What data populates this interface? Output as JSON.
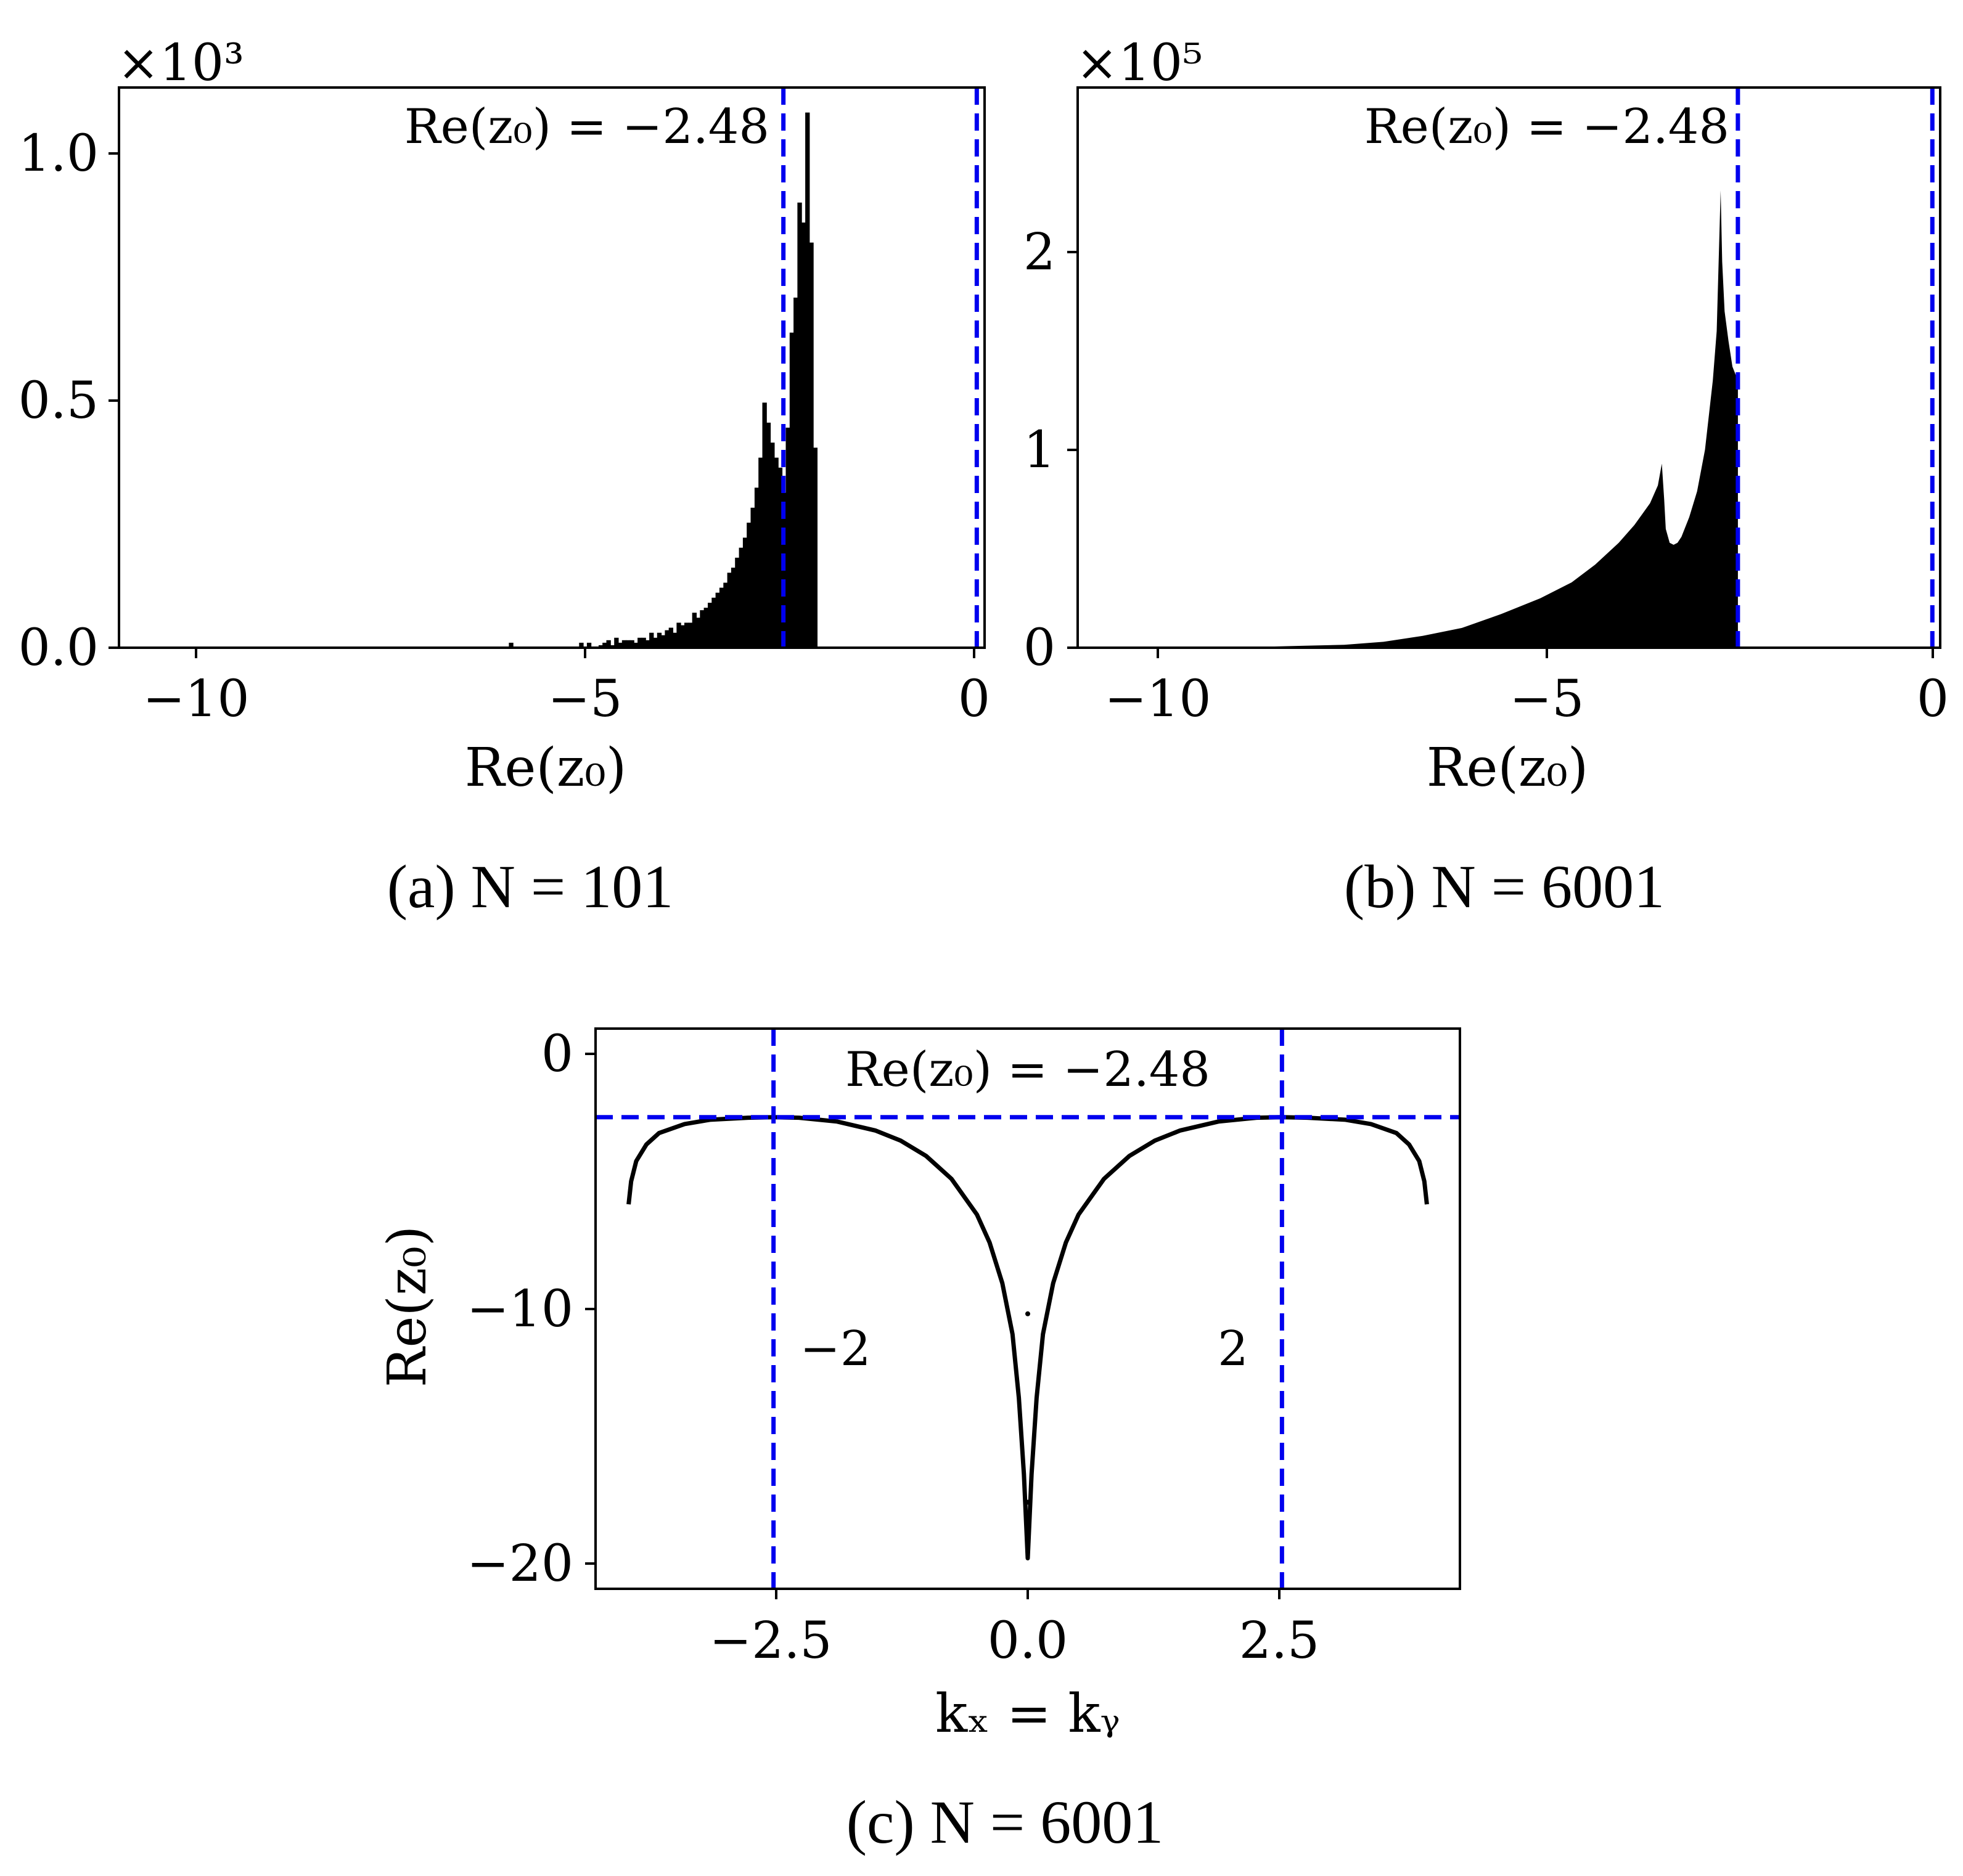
{
  "colors": {
    "bars": "#000000",
    "guide": "#0000ee",
    "frame": "#000000"
  },
  "chart_data": [
    {
      "type": "bar",
      "caption": "(a) N = 101",
      "xlabel": "Re(z₀)",
      "ylabel": "",
      "xlim": [
        -11,
        0.1
      ],
      "ylim": [
        0,
        1.12
      ],
      "y_multiplier": "×10³",
      "xticks": [
        "−10",
        "−5",
        "0"
      ],
      "yticks": [
        "0.0",
        "0.5",
        "1.0"
      ],
      "annotation": "Re(z₀) = −2.48",
      "vlines": [
        -2.48,
        0
      ],
      "bin_width": 0.0576,
      "bins_x": [
        -6.0,
        -5.1,
        -5.0,
        -4.9,
        -4.85,
        -4.8,
        -4.75,
        -4.7,
        -4.65,
        -4.6,
        -4.55,
        -4.5,
        -4.45,
        -4.4,
        -4.35,
        -4.3,
        -4.25,
        -4.2,
        -4.15,
        -4.1,
        -4.05,
        -4.0,
        -3.95,
        -3.9,
        -3.85,
        -3.8,
        -3.75,
        -3.7,
        -3.65,
        -3.6,
        -3.55,
        -3.5,
        -3.45,
        -3.4,
        -3.35,
        -3.3,
        -3.25,
        -3.2,
        -3.15,
        -3.1,
        -3.05,
        -3.0,
        -2.95,
        -2.9,
        -2.85,
        -2.8,
        -2.75,
        -2.7,
        -2.65,
        -2.6,
        -2.55,
        -2.5,
        -2.45,
        -2.4,
        -2.35,
        -2.3,
        -2.25,
        -2.2,
        -2.15,
        -2.1
      ],
      "values": [
        0.01,
        0.01,
        0.01,
        0.0,
        0.005,
        0.01,
        0.015,
        0.005,
        0.02,
        0.01,
        0.015,
        0.015,
        0.015,
        0.01,
        0.02,
        0.02,
        0.015,
        0.03,
        0.02,
        0.03,
        0.025,
        0.035,
        0.04,
        0.03,
        0.05,
        0.045,
        0.05,
        0.05,
        0.07,
        0.06,
        0.075,
        0.08,
        0.09,
        0.1,
        0.11,
        0.12,
        0.13,
        0.15,
        0.16,
        0.18,
        0.2,
        0.22,
        0.25,
        0.28,
        0.32,
        0.38,
        0.49,
        0.45,
        0.41,
        0.38,
        0.36,
        0.31,
        0.44,
        0.63,
        0.7,
        0.89,
        0.85,
        1.07,
        0.81,
        0.4
      ]
    },
    {
      "type": "area",
      "caption": "(b) N = 6001",
      "xlabel": "Re(z₀)",
      "ylabel": "",
      "xlim": [
        -10.9,
        0.1
      ],
      "ylim": [
        0,
        2.83
      ],
      "y_multiplier": "×10⁵",
      "xticks": [
        "−10",
        "−5",
        "0"
      ],
      "yticks": [
        "0",
        "1",
        "2"
      ],
      "annotation": "Re(z₀) = −2.48",
      "vlines": [
        -2.48,
        0
      ],
      "x": [
        -9.0,
        -8.0,
        -7.5,
        -7.0,
        -6.5,
        -6.0,
        -5.5,
        -5.0,
        -4.6,
        -4.3,
        -4.0,
        -3.8,
        -3.6,
        -3.5,
        -3.45,
        -3.42,
        -3.4,
        -3.35,
        -3.3,
        -3.25,
        -3.2,
        -3.1,
        -3.0,
        -2.9,
        -2.8,
        -2.75,
        -2.7,
        -2.68,
        -2.65,
        -2.6,
        -2.55,
        -2.48
      ],
      "y": [
        0.0,
        0.01,
        0.015,
        0.03,
        0.06,
        0.1,
        0.17,
        0.25,
        0.33,
        0.42,
        0.53,
        0.62,
        0.73,
        0.82,
        0.93,
        0.75,
        0.6,
        0.53,
        0.52,
        0.53,
        0.56,
        0.66,
        0.79,
        1.0,
        1.35,
        1.6,
        2.31,
        1.95,
        1.7,
        1.55,
        1.42,
        1.35
      ]
    },
    {
      "type": "line",
      "caption": "(c) N = 6001",
      "xlabel": "kₓ = kᵧ",
      "ylabel": "Re(z₀)",
      "xlim": [
        -3.4,
        3.4
      ],
      "ylim": [
        -21,
        1
      ],
      "xticks": [
        "−2.5",
        "0.0",
        "2.5"
      ],
      "yticks": [
        "0",
        "−10",
        "−20"
      ],
      "annotation": "Re(z₀) = −2.48",
      "hline": -2.48,
      "vlines": [
        -2,
        2
      ],
      "vline_labels": [
        "−2",
        "2"
      ],
      "curve_description": "Re(z0) versus k along the diagonal, symmetric about 0",
      "x": [
        -3.14,
        -3.12,
        -3.08,
        -3.0,
        -2.9,
        -2.7,
        -2.5,
        -2.2,
        -2.0,
        -1.8,
        -1.5,
        -1.2,
        -1.0,
        -0.8,
        -0.6,
        -0.4,
        -0.3,
        -0.2,
        -0.12,
        -0.07,
        -0.03,
        0.0,
        0.03,
        0.07,
        0.12,
        0.2,
        0.3,
        0.4,
        0.6,
        0.8,
        1.0,
        1.2,
        1.5,
        1.8,
        2.0,
        2.2,
        2.5,
        2.7,
        2.9,
        3.0,
        3.08,
        3.12,
        3.14
      ],
      "y": [
        -5.9,
        -5.0,
        -4.2,
        -3.55,
        -3.1,
        -2.75,
        -2.58,
        -2.5,
        -2.48,
        -2.5,
        -2.65,
        -3.0,
        -3.4,
        -4.0,
        -4.9,
        -6.3,
        -7.4,
        -9.0,
        -11.0,
        -13.5,
        -16.5,
        -19.8,
        -16.5,
        -13.5,
        -11.0,
        -9.0,
        -7.4,
        -6.3,
        -4.9,
        -4.0,
        -3.4,
        -3.0,
        -2.65,
        -2.5,
        -2.48,
        -2.5,
        -2.58,
        -2.75,
        -3.1,
        -3.55,
        -4.2,
        -5.0,
        -5.9
      ],
      "extra_points": [
        [
          0.0,
          -10.2
        ],
        [
          0.0,
          -17.6
        ]
      ]
    }
  ]
}
